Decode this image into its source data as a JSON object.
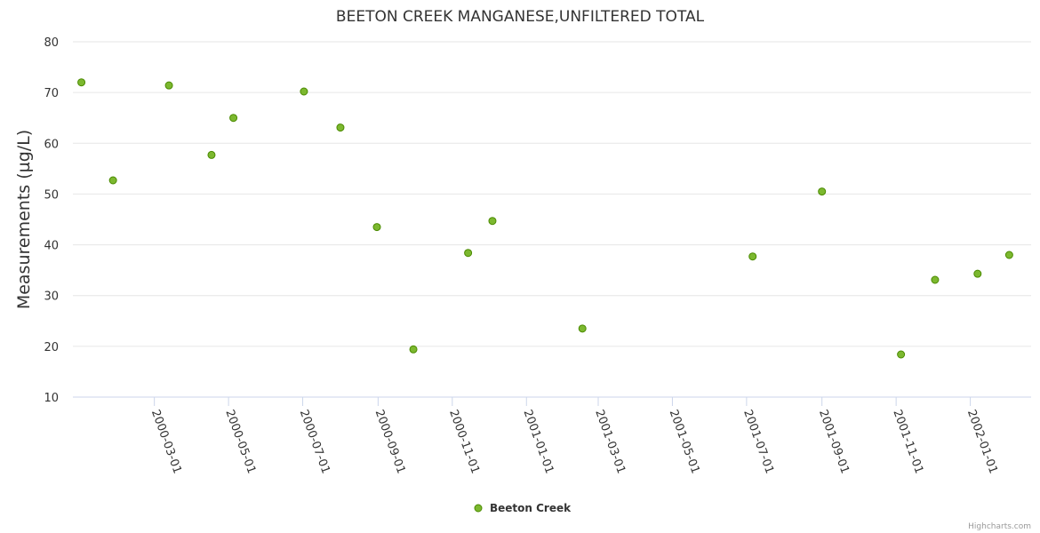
{
  "chart_data": {
    "type": "scatter",
    "title": "BEETON CREEK MANGANESE,UNFILTERED TOTAL",
    "ylabel": "Measurements (µg/L)",
    "xlabel": "",
    "ylim": [
      10,
      80
    ],
    "yticks": [
      10,
      20,
      30,
      40,
      50,
      60,
      70,
      80
    ],
    "xlim": [
      "1999-12-25",
      "2002-02-20"
    ],
    "xticks": [
      "2000-03-01",
      "2000-05-01",
      "2000-07-01",
      "2000-09-01",
      "2000-11-01",
      "2001-01-01",
      "2001-03-01",
      "2001-05-01",
      "2001-07-01",
      "2001-09-01",
      "2001-11-01",
      "2002-01-01"
    ],
    "grid": true,
    "legend_position": "bottom-center",
    "series": [
      {
        "name": "Beeton Creek",
        "color": "#7cb82f",
        "stroke": "#4a8a00",
        "points": [
          {
            "x": "2000-01-01",
            "y": 72
          },
          {
            "x": "2000-01-27",
            "y": 52.7
          },
          {
            "x": "2000-03-13",
            "y": 71.4
          },
          {
            "x": "2000-04-17",
            "y": 57.7
          },
          {
            "x": "2000-05-05",
            "y": 65
          },
          {
            "x": "2000-07-02",
            "y": 70.2
          },
          {
            "x": "2000-08-01",
            "y": 63.1
          },
          {
            "x": "2000-08-31",
            "y": 43.5
          },
          {
            "x": "2000-09-30",
            "y": 19.4
          },
          {
            "x": "2000-11-14",
            "y": 38.4
          },
          {
            "x": "2000-12-04",
            "y": 44.7
          },
          {
            "x": "2001-02-16",
            "y": 23.5
          },
          {
            "x": "2001-07-06",
            "y": 37.7
          },
          {
            "x": "2001-09-01",
            "y": 50.5
          },
          {
            "x": "2001-11-05",
            "y": 18.4
          },
          {
            "x": "2001-12-03",
            "y": 33.1
          },
          {
            "x": "2002-01-07",
            "y": 34.3
          },
          {
            "x": "2002-02-02",
            "y": 38
          }
        ]
      }
    ]
  },
  "credits": "Highcharts.com"
}
